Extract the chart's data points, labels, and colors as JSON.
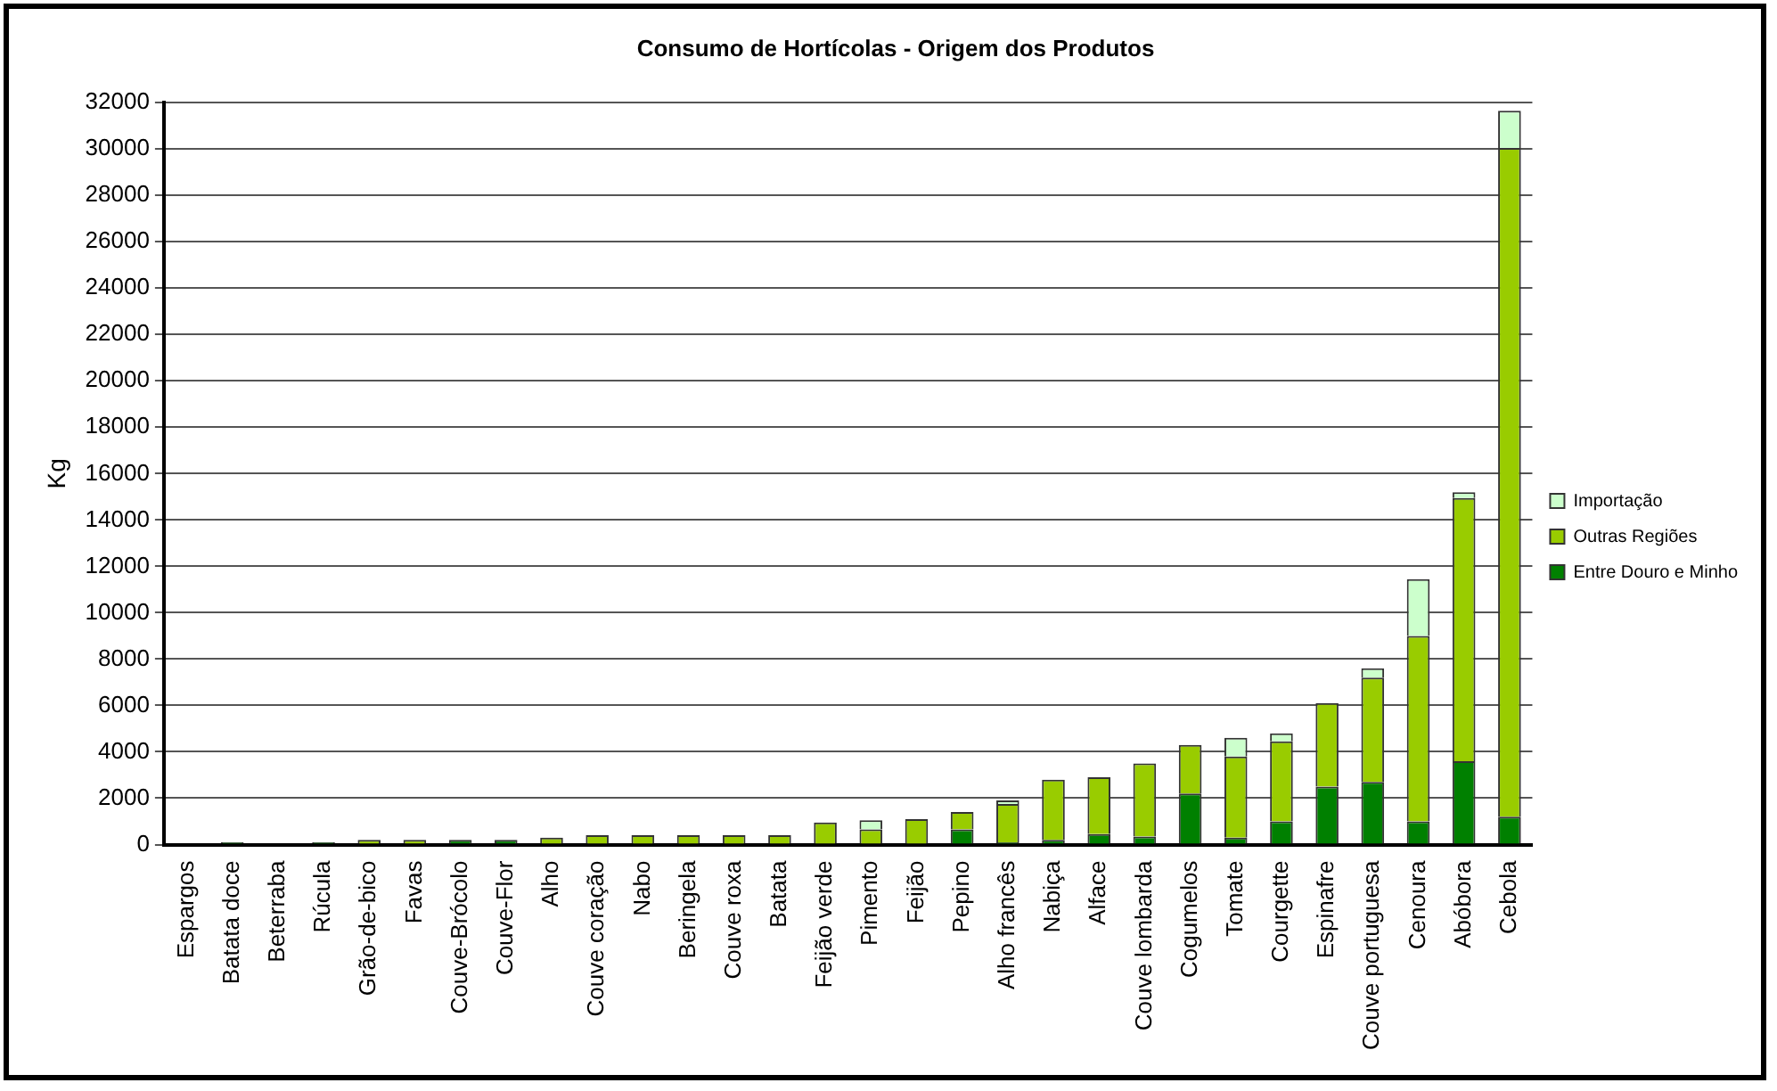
{
  "chart_data": {
    "type": "bar",
    "title": "Consumo de Hortícolas - Origem dos Produtos",
    "ylabel": "Kg",
    "stacked": true,
    "grid": "y",
    "legend": "right",
    "categories": [
      "Espargos",
      "Batata doce",
      "Beterraba",
      "Rúcula",
      "Grão-de-bico",
      "Favas",
      "Couve-Brócolo",
      "Couve-Flor",
      "Alho",
      "Couve coração",
      "Nabo",
      "Beringela",
      "Couve roxa",
      "Batata",
      "Feijão verde",
      "Pimento",
      "Feijão",
      "Pepino",
      "Alho francês",
      "Nabiça",
      "Alface",
      "Couve lombarda",
      "Cogumelos",
      "Tomate",
      "Courgette",
      "Espinafre",
      "Couve portuguesa",
      "Cenoura",
      "Abóbora",
      "Cebola"
    ],
    "ylim": [
      0,
      32000
    ],
    "yticks": [
      0,
      2000,
      4000,
      6000,
      8000,
      10000,
      12000,
      14000,
      16000,
      18000,
      20000,
      22000,
      24000,
      26000,
      28000,
      30000,
      32000
    ],
    "series": [
      {
        "name": "Entre Douro e Minho",
        "color": "#008000",
        "values": [
          0,
          100,
          0,
          100,
          0,
          0,
          200,
          200,
          0,
          0,
          0,
          0,
          0,
          0,
          0,
          0,
          0,
          650,
          100,
          200,
          450,
          350,
          2200,
          300,
          1000,
          2500,
          2700,
          1000,
          3600,
          1200
        ]
      },
      {
        "name": "Outras Regiões",
        "color": "#99cc00",
        "values": [
          0,
          0,
          0,
          0,
          200,
          200,
          0,
          0,
          300,
          400,
          400,
          400,
          400,
          400,
          950,
          650,
          1100,
          750,
          1650,
          2600,
          2450,
          3150,
          2100,
          3500,
          3450,
          3600,
          4500,
          8000,
          11350,
          28850
        ]
      },
      {
        "name": "Importação",
        "color": "#ccffcc",
        "values": [
          0,
          0,
          0,
          0,
          0,
          0,
          0,
          0,
          0,
          0,
          0,
          0,
          0,
          0,
          0,
          400,
          0,
          0,
          150,
          0,
          0,
          0,
          0,
          800,
          350,
          0,
          400,
          2450,
          250,
          1600
        ]
      }
    ]
  }
}
